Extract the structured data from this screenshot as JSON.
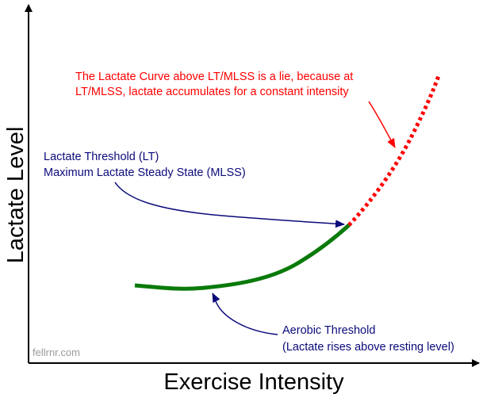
{
  "axes": {
    "x_label": "Exercise Intensity",
    "y_label": "Lactate Level"
  },
  "annotations": {
    "lie_note": {
      "line1": "The Lactate Curve above LT/MLSS is a lie, because at",
      "line2": "LT/MLSS, lactate accumulates for a constant intensity"
    },
    "lt_note": {
      "line1": "Lactate Threshold (LT)",
      "line2": "Maximum Lactate Steady State (MLSS)"
    },
    "aerobic_note": {
      "line1": "Aerobic Threshold",
      "line2": "(Lactate rises above resting level)"
    }
  },
  "watermark": "fellrnr.com",
  "colors": {
    "axis": "#000000",
    "curve_valid": "#0a7a0a",
    "curve_invalid": "#ff0000",
    "arrow": "#0a0a7a",
    "lie_text": "#ff0000",
    "note_text": "#0a0a7a",
    "watermark": "#9a9a9a"
  }
}
